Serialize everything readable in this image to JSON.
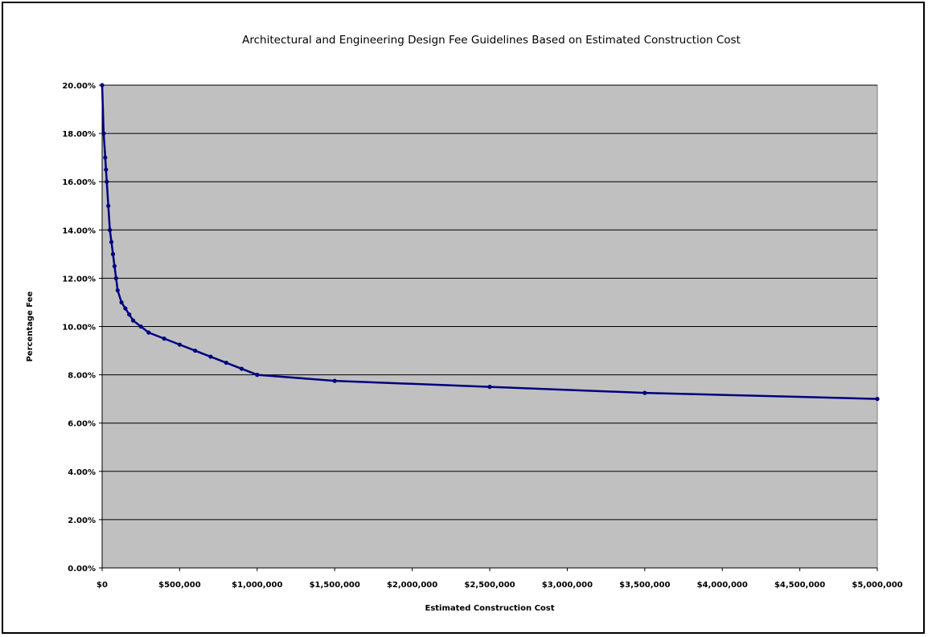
{
  "chart_data": {
    "type": "line",
    "title": "Architectural and Engineering Design Fee Guidelines Based on Estimated Construction Cost",
    "xlabel": "Estimated Construction Cost",
    "ylabel": "Percentage Fee",
    "xlim": [
      0,
      5000000
    ],
    "ylim": [
      0,
      0.2
    ],
    "x_ticks": [
      0,
      500000,
      1000000,
      1500000,
      2000000,
      2500000,
      3000000,
      3500000,
      4000000,
      4500000,
      5000000
    ],
    "x_tick_labels": [
      "$0",
      "$500,000",
      "$1,000,000",
      "$1,500,000",
      "$2,000,000",
      "$2,500,000",
      "$3,000,000",
      "$3,500,000",
      "$4,000,000",
      "$4,500,000",
      "$5,000,000"
    ],
    "y_ticks": [
      0,
      0.02,
      0.04,
      0.06,
      0.08,
      0.1,
      0.12,
      0.14,
      0.16,
      0.18,
      0.2
    ],
    "y_tick_labels": [
      "0.00%",
      "2.00%",
      "4.00%",
      "6.00%",
      "8.00%",
      "10.00%",
      "12.00%",
      "14.00%",
      "16.00%",
      "18.00%",
      "20.00%"
    ],
    "grid": "horizontal",
    "legend": "none",
    "colors": {
      "plot_background": "#c0c0c0",
      "line": "#000080",
      "gridline": "#000000"
    },
    "series": [
      {
        "x": [
          0,
          10000,
          20000,
          25000,
          30000,
          40000,
          50000,
          60000,
          70000,
          80000,
          90000,
          100000,
          125000,
          150000,
          175000,
          200000,
          250000,
          300000,
          400000,
          500000,
          600000,
          700000,
          800000,
          900000,
          1000000,
          1500000,
          2500000,
          3500000,
          5000000
        ],
        "y": [
          0.2,
          0.18,
          0.17,
          0.165,
          0.16,
          0.15,
          0.14,
          0.135,
          0.13,
          0.125,
          0.12,
          0.115,
          0.11,
          0.1075,
          0.105,
          0.1025,
          0.1,
          0.0975,
          0.095,
          0.0925,
          0.09,
          0.0875,
          0.085,
          0.0825,
          0.08,
          0.0775,
          0.075,
          0.0725,
          0.07
        ]
      }
    ]
  }
}
